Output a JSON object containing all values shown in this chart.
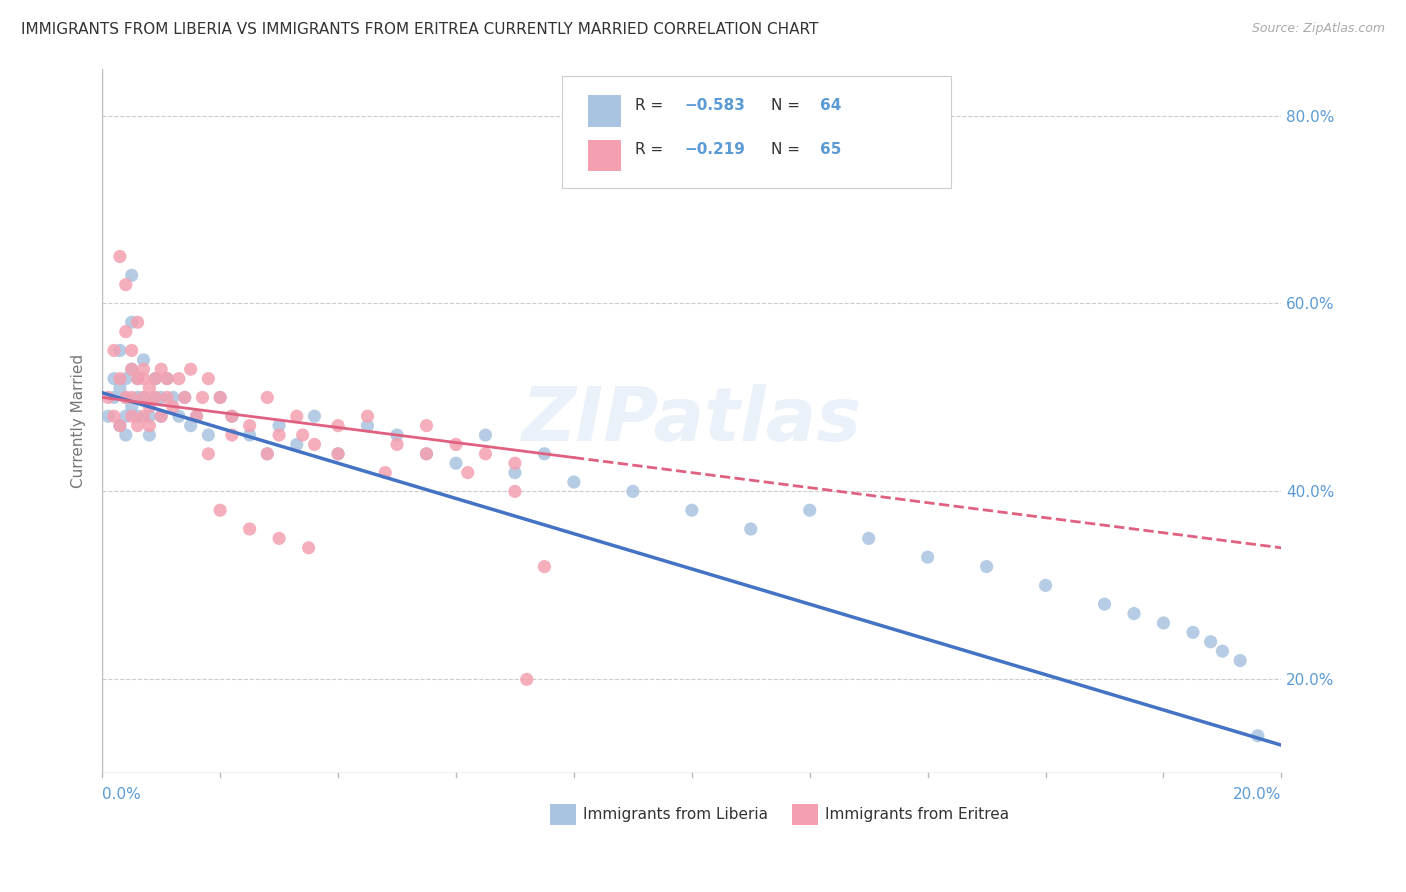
{
  "title": "IMMIGRANTS FROM LIBERIA VS IMMIGRANTS FROM ERITREA CURRENTLY MARRIED CORRELATION CHART",
  "source_text": "Source: ZipAtlas.com",
  "ylabel": "Currently Married",
  "ylabel_right_labels": [
    "20.0%",
    "40.0%",
    "60.0%",
    "80.0%"
  ],
  "ylabel_right_values": [
    0.2,
    0.4,
    0.6,
    0.8
  ],
  "legend_label_blue": "Immigrants from Liberia",
  "legend_label_pink": "Immigrants from Eritrea",
  "color_blue": "#a8c4e0",
  "color_pink": "#f4a0b0",
  "color_blue_line": "#4472c4",
  "color_pink_line": "#e06080",
  "watermark": "ZIPatlas",
  "liberia_x": [
    0.001,
    0.002,
    0.002,
    0.003,
    0.003,
    0.003,
    0.004,
    0.004,
    0.004,
    0.004,
    0.005,
    0.005,
    0.005,
    0.005,
    0.006,
    0.006,
    0.006,
    0.007,
    0.007,
    0.008,
    0.008,
    0.009,
    0.009,
    0.01,
    0.01,
    0.011,
    0.012,
    0.013,
    0.014,
    0.015,
    0.016,
    0.018,
    0.02,
    0.022,
    0.025,
    0.028,
    0.03,
    0.033,
    0.036,
    0.04,
    0.045,
    0.05,
    0.055,
    0.06,
    0.065,
    0.07,
    0.075,
    0.08,
    0.09,
    0.1,
    0.11,
    0.12,
    0.13,
    0.14,
    0.15,
    0.16,
    0.17,
    0.175,
    0.18,
    0.185,
    0.188,
    0.19,
    0.193,
    0.196
  ],
  "liberia_y": [
    0.48,
    0.5,
    0.52,
    0.47,
    0.51,
    0.55,
    0.5,
    0.48,
    0.52,
    0.46,
    0.53,
    0.49,
    0.63,
    0.58,
    0.5,
    0.48,
    0.52,
    0.54,
    0.5,
    0.48,
    0.46,
    0.5,
    0.52,
    0.48,
    0.5,
    0.52,
    0.5,
    0.48,
    0.5,
    0.47,
    0.48,
    0.46,
    0.5,
    0.48,
    0.46,
    0.44,
    0.47,
    0.45,
    0.48,
    0.44,
    0.47,
    0.46,
    0.44,
    0.43,
    0.46,
    0.42,
    0.44,
    0.41,
    0.4,
    0.38,
    0.36,
    0.38,
    0.35,
    0.33,
    0.32,
    0.3,
    0.28,
    0.27,
    0.26,
    0.25,
    0.24,
    0.23,
    0.22,
    0.14
  ],
  "eritrea_x": [
    0.001,
    0.002,
    0.002,
    0.003,
    0.003,
    0.003,
    0.004,
    0.004,
    0.004,
    0.005,
    0.005,
    0.005,
    0.005,
    0.006,
    0.006,
    0.006,
    0.007,
    0.007,
    0.007,
    0.007,
    0.008,
    0.008,
    0.008,
    0.009,
    0.009,
    0.01,
    0.01,
    0.011,
    0.011,
    0.012,
    0.013,
    0.014,
    0.015,
    0.016,
    0.017,
    0.018,
    0.02,
    0.022,
    0.025,
    0.028,
    0.03,
    0.033,
    0.036,
    0.04,
    0.045,
    0.05,
    0.055,
    0.06,
    0.065,
    0.07,
    0.018,
    0.022,
    0.028,
    0.034,
    0.04,
    0.048,
    0.055,
    0.062,
    0.07,
    0.075,
    0.02,
    0.025,
    0.03,
    0.035,
    0.072
  ],
  "eritrea_y": [
    0.5,
    0.48,
    0.55,
    0.52,
    0.47,
    0.65,
    0.62,
    0.5,
    0.57,
    0.53,
    0.48,
    0.55,
    0.5,
    0.58,
    0.52,
    0.47,
    0.53,
    0.5,
    0.48,
    0.52,
    0.47,
    0.51,
    0.49,
    0.52,
    0.5,
    0.53,
    0.48,
    0.5,
    0.52,
    0.49,
    0.52,
    0.5,
    0.53,
    0.48,
    0.5,
    0.52,
    0.5,
    0.48,
    0.47,
    0.5,
    0.46,
    0.48,
    0.45,
    0.47,
    0.48,
    0.45,
    0.47,
    0.45,
    0.44,
    0.43,
    0.44,
    0.46,
    0.44,
    0.46,
    0.44,
    0.42,
    0.44,
    0.42,
    0.4,
    0.32,
    0.38,
    0.36,
    0.35,
    0.34,
    0.2
  ],
  "xlim": [
    0.0,
    0.2
  ],
  "ylim": [
    0.1,
    0.85
  ],
  "background_color": "#ffffff",
  "grid_color": "#cccccc"
}
